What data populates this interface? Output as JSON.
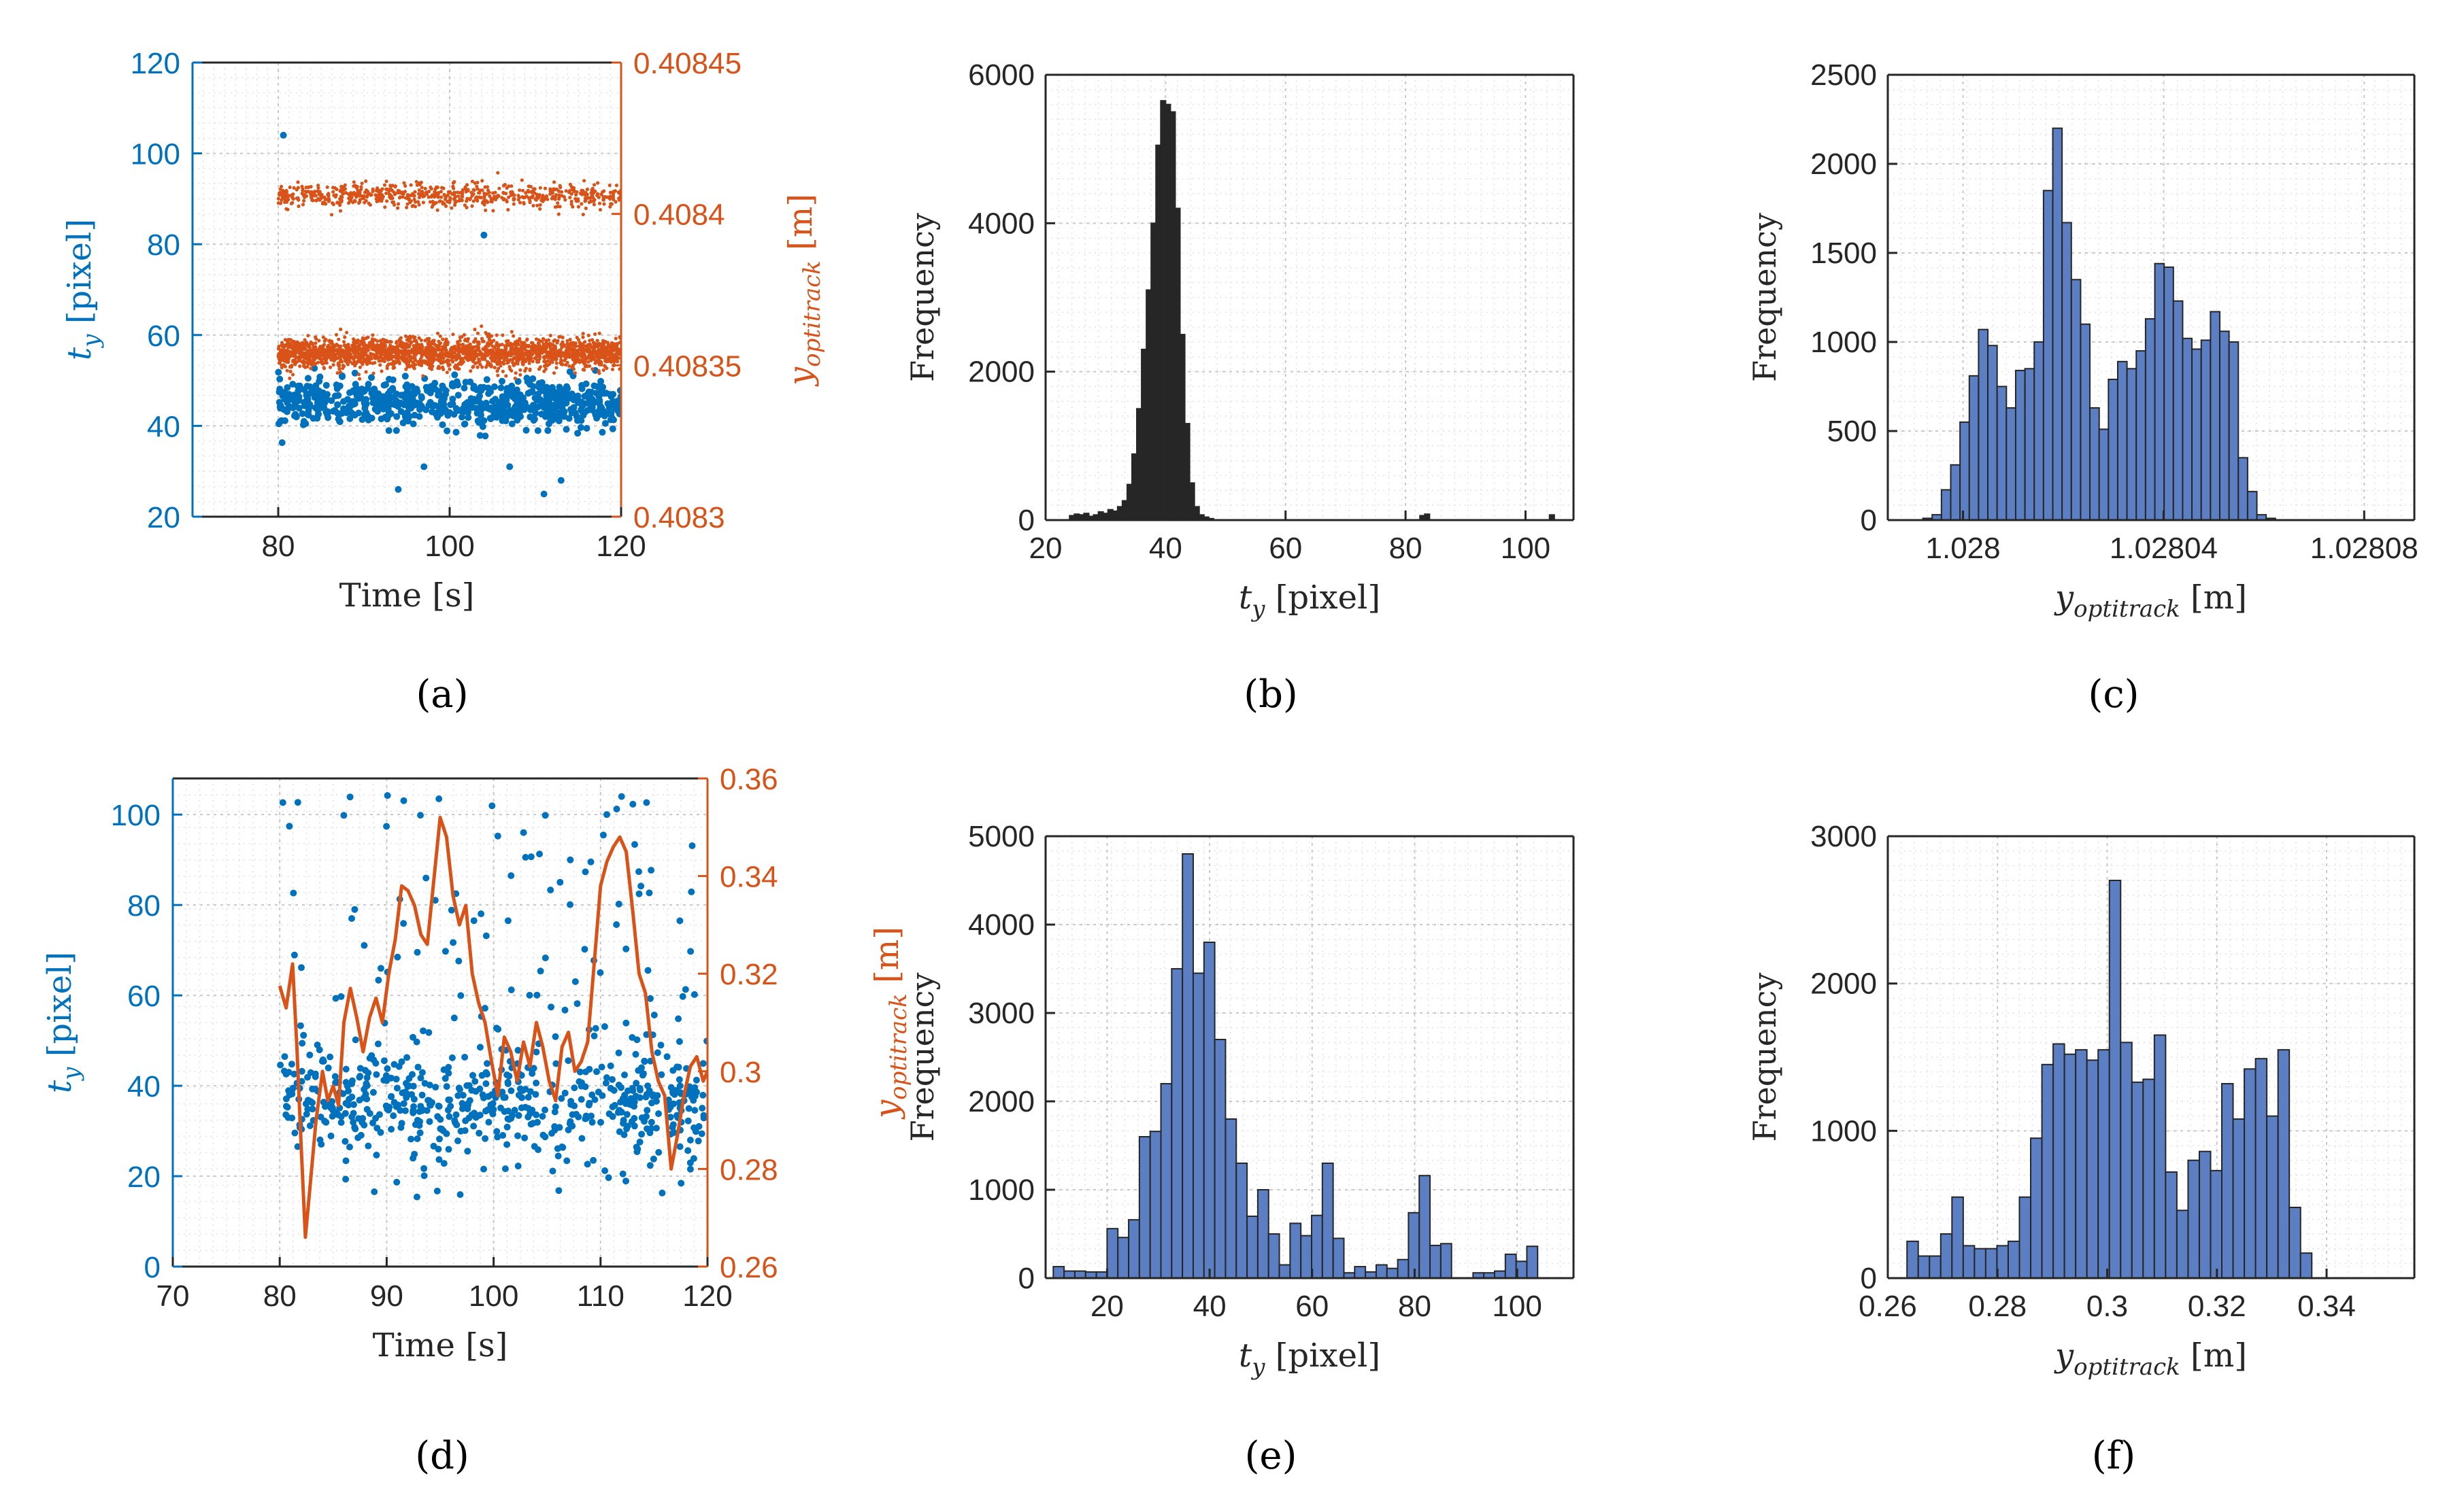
{
  "colors": {
    "blue": "#0072BD",
    "orange": "#D95319",
    "bar_fill": "#5B7FC2",
    "bar_dark": "#262626",
    "axis": "#262626",
    "grid": "#C8C8C8"
  },
  "captions": [
    "(a)",
    "(b)",
    "(c)",
    "(d)",
    "(e)",
    "(f)"
  ],
  "chart_data": [
    {
      "id": "a",
      "type": "scatter",
      "xlabel": "Time [s]",
      "xlim": [
        70,
        120
      ],
      "xticks": [
        80,
        100,
        120
      ],
      "left_axis": {
        "label_main": "t",
        "label_sub": "y",
        "label_unit": " [pixel]",
        "ylim": [
          20,
          120
        ],
        "ticks": [
          20,
          40,
          60,
          80,
          100,
          120
        ]
      },
      "right_axis": {
        "label_main": "y",
        "label_sub": "optitrack",
        "label_unit": " [m]",
        "ylim": [
          0.4083,
          0.40845
        ],
        "ticks": [
          0.4083,
          0.40835,
          0.4084,
          0.40845
        ],
        "tick_labels": [
          "0.4083",
          "0.40835",
          "0.4084",
          "0.40845"
        ]
      },
      "series": [
        {
          "name": "t_y",
          "axis": "left",
          "color": "blue",
          "x_range": [
            80,
            120
          ],
          "main_level": 45,
          "spread": 2.5,
          "outliers": [
            [
              80.6,
              104
            ],
            [
              94,
              26
            ],
            [
              97,
              31
            ],
            [
              104,
              82
            ],
            [
              107,
              31
            ],
            [
              111,
              25
            ],
            [
              113,
              28
            ]
          ]
        },
        {
          "name": "y_optitrack",
          "axis": "right",
          "color": "orange",
          "x_range": [
            80,
            120
          ],
          "main_level": 0.408354,
          "spread": 2.5e-06,
          "upper_level": 0.408406,
          "upper_spread": 2e-06
        }
      ]
    },
    {
      "id": "b",
      "type": "bar",
      "xlabel_main": "t",
      "xlabel_sub": "y",
      "xlabel_unit": " [pixel]",
      "ylabel": "Frequency",
      "xlim": [
        20,
        108
      ],
      "ylim": [
        0,
        6000
      ],
      "xticks": [
        20,
        40,
        60,
        80,
        100
      ],
      "yticks": [
        0,
        2000,
        4000,
        6000
      ],
      "bin_start": 24,
      "bin_width": 0.8,
      "values": [
        60,
        80,
        70,
        90,
        50,
        70,
        110,
        90,
        140,
        120,
        180,
        260,
        480,
        890,
        1500,
        2300,
        3100,
        4000,
        5050,
        5650,
        5600,
        5500,
        4200,
        2500,
        1300,
        500,
        180,
        70,
        40,
        20
      ],
      "extra_bins": [
        {
          "x": 82.4,
          "value": 60
        },
        {
          "x": 83.2,
          "value": 80
        },
        {
          "x": 104,
          "value": 70
        }
      ]
    },
    {
      "id": "c",
      "type": "bar",
      "xlabel_main": "y",
      "xlabel_sub": "optitrack",
      "xlabel_unit": " [m]",
      "ylabel": "Frequency",
      "xlim": [
        1.027985,
        1.02809
      ],
      "ylim": [
        0,
        2500
      ],
      "xticks": [
        1.028,
        1.02804,
        1.02808
      ],
      "xtick_labels": [
        "1.028",
        "1.02804",
        "1.02808"
      ],
      "yticks": [
        0,
        500,
        1000,
        1500,
        2000,
        2500
      ],
      "bin_start": 1.027992,
      "bin_width": 1.85e-06,
      "values": [
        10,
        30,
        170,
        310,
        550,
        810,
        1070,
        980,
        750,
        630,
        840,
        850,
        1000,
        1850,
        2200,
        1670,
        1350,
        1100,
        630,
        510,
        790,
        890,
        850,
        950,
        1130,
        1440,
        1420,
        1230,
        1020,
        960,
        1010,
        1170,
        1060,
        1000,
        350,
        160,
        30,
        10
      ]
    },
    {
      "id": "d",
      "type": "scatter",
      "xlabel": "Time [s]",
      "xlim": [
        70,
        120
      ],
      "xticks": [
        70,
        80,
        90,
        100,
        110,
        120
      ],
      "left_axis": {
        "label_main": "t",
        "label_sub": "y",
        "label_unit": " [pixel]",
        "ylim": [
          0,
          108
        ],
        "ticks": [
          0,
          20,
          40,
          60,
          80,
          100
        ]
      },
      "right_axis": {
        "label_main": "y",
        "label_sub": "optitrack",
        "label_unit": " [m]",
        "ylim": [
          0.26,
          0.36
        ],
        "ticks": [
          0.26,
          0.28,
          0.3,
          0.32,
          0.34,
          0.36
        ],
        "tick_labels": [
          "0.26",
          "0.28",
          "0.3",
          "0.32",
          "0.34",
          "0.36"
        ]
      },
      "series": [
        {
          "name": "t_y",
          "axis": "left",
          "color": "blue",
          "x_range": [
            80,
            120
          ],
          "main_level": 36,
          "spread": 10
        },
        {
          "name": "y_optitrack",
          "axis": "right",
          "color": "orange",
          "type": "line",
          "x": [
            80,
            80.6,
            81.2,
            81.6,
            82,
            82.4,
            82.9,
            83.4,
            84,
            84.5,
            85,
            85.5,
            86,
            86.6,
            87.2,
            87.8,
            88.4,
            89,
            89.6,
            90.2,
            90.8,
            91.4,
            92,
            92.6,
            93.2,
            93.8,
            94.4,
            95,
            95.6,
            96.2,
            96.8,
            97.4,
            98,
            98.6,
            99.2,
            99.8,
            100.4,
            101,
            101.6,
            102.2,
            102.8,
            103.4,
            104,
            104.6,
            105.2,
            105.8,
            106.4,
            107,
            107.6,
            108.2,
            108.8,
            109.4,
            110,
            110.6,
            111.2,
            111.8,
            112.4,
            113,
            113.6,
            114.2,
            114.8,
            115.4,
            116,
            116.6,
            117.2,
            117.8,
            118.4,
            119,
            119.6,
            120
          ],
          "y": [
            0.3175,
            0.313,
            0.322,
            0.305,
            0.285,
            0.266,
            0.278,
            0.29,
            0.3,
            0.294,
            0.297,
            0.293,
            0.31,
            0.317,
            0.311,
            0.304,
            0.311,
            0.315,
            0.31,
            0.32,
            0.327,
            0.338,
            0.337,
            0.334,
            0.328,
            0.326,
            0.339,
            0.352,
            0.348,
            0.336,
            0.33,
            0.334,
            0.32,
            0.314,
            0.31,
            0.302,
            0.295,
            0.307,
            0.304,
            0.298,
            0.306,
            0.301,
            0.31,
            0.305,
            0.298,
            0.294,
            0.305,
            0.308,
            0.3,
            0.302,
            0.306,
            0.322,
            0.338,
            0.343,
            0.346,
            0.348,
            0.345,
            0.333,
            0.32,
            0.316,
            0.304,
            0.298,
            0.295,
            0.28,
            0.287,
            0.295,
            0.301,
            0.303,
            0.298,
            0.3
          ]
        }
      ]
    },
    {
      "id": "e",
      "type": "bar",
      "xlabel_main": "t",
      "xlabel_sub": "y",
      "xlabel_unit": " [pixel]",
      "ylabel": "Frequency",
      "xlim": [
        8,
        111
      ],
      "ylim": [
        0,
        5000
      ],
      "xticks": [
        20,
        40,
        60,
        80,
        100
      ],
      "yticks": [
        0,
        1000,
        2000,
        3000,
        4000,
        5000
      ],
      "bin_start": 9.5,
      "bin_width": 2.1,
      "values": [
        130,
        80,
        80,
        70,
        70,
        560,
        460,
        660,
        1600,
        1660,
        2200,
        3500,
        4800,
        3450,
        3800,
        2700,
        1800,
        1300,
        700,
        1000,
        500,
        150,
        620,
        480,
        710,
        1300,
        450,
        60,
        130,
        70,
        150,
        110,
        210,
        740,
        1160,
        370,
        390,
        0,
        0,
        60,
        60,
        80,
        270,
        190,
        360
      ]
    },
    {
      "id": "f",
      "type": "bar",
      "xlabel_main": "y",
      "xlabel_sub": "optitrack",
      "xlabel_unit": " [m]",
      "ylabel": "Frequency",
      "xlim": [
        0.26,
        0.356
      ],
      "ylim": [
        0,
        3000
      ],
      "xticks": [
        0.26,
        0.28,
        0.3,
        0.32,
        0.34
      ],
      "xtick_labels": [
        "0.26",
        "0.28",
        "0.3",
        "0.32",
        "0.34"
      ],
      "yticks": [
        0,
        1000,
        2000,
        3000
      ],
      "bin_start": 0.2635,
      "bin_width": 0.00205,
      "values": [
        250,
        150,
        150,
        300,
        550,
        220,
        200,
        200,
        220,
        250,
        550,
        950,
        1450,
        1590,
        1520,
        1550,
        1480,
        1550,
        2700,
        1600,
        1330,
        1350,
        1650,
        720,
        460,
        800,
        860,
        730,
        1320,
        1080,
        1420,
        1490,
        1100,
        1550,
        480,
        170
      ]
    }
  ]
}
